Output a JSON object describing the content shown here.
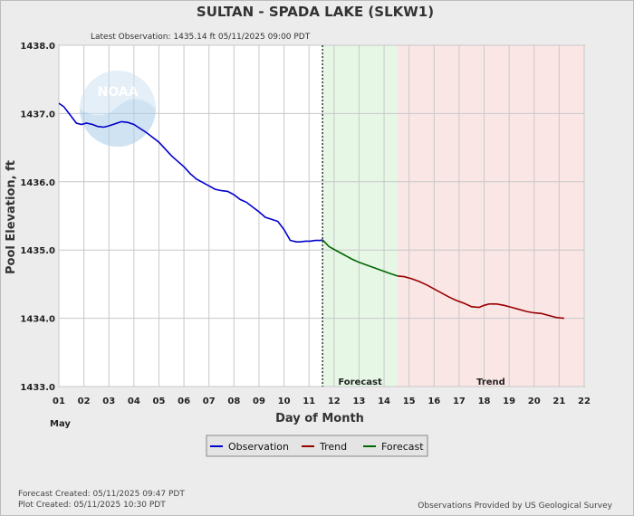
{
  "chart_data": {
    "type": "line",
    "title": "SULTAN - SPADA LAKE  (SLKW1)",
    "subtitle": "Latest Observation: 1435.14 ft 05/11/2025 09:00 PDT",
    "xlabel": "Day of Month",
    "ylabel": "Pool Elevation, ft",
    "month_label": "May",
    "xlim": [
      1,
      22
    ],
    "ylim": [
      1433.0,
      1438.0
    ],
    "x_ticks": [
      "01",
      "02",
      "03",
      "04",
      "05",
      "06",
      "07",
      "08",
      "09",
      "10",
      "11",
      "12",
      "13",
      "14",
      "15",
      "16",
      "17",
      "18",
      "19",
      "20",
      "21",
      "22"
    ],
    "y_ticks": [
      "1433.0",
      "1434.0",
      "1435.0",
      "1436.0",
      "1437.0",
      "1438.0"
    ],
    "grid": true,
    "regions": [
      {
        "label": "Forecast",
        "x_start": 11.54,
        "x_end": 14.54,
        "color": "#e6f7e6"
      },
      {
        "label": "Trend",
        "x_start": 14.54,
        "x_end": 22.0,
        "color": "#fbe6e6"
      }
    ],
    "now_marker_x": 11.54,
    "series": [
      {
        "name": "Observation",
        "color": "#0000cc",
        "x": [
          1.0,
          1.2,
          1.45,
          1.7,
          1.9,
          2.1,
          2.35,
          2.55,
          2.8,
          3.0,
          3.25,
          3.5,
          3.75,
          4.0,
          4.25,
          4.5,
          4.75,
          5.0,
          5.25,
          5.5,
          5.75,
          6.0,
          6.25,
          6.5,
          6.75,
          7.0,
          7.25,
          7.5,
          7.75,
          8.0,
          8.25,
          8.5,
          8.75,
          9.0,
          9.25,
          9.5,
          9.75,
          10.0,
          10.25,
          10.5,
          10.65,
          10.85,
          11.05,
          11.25,
          11.45,
          11.54
        ],
        "y": [
          1437.15,
          1437.1,
          1436.98,
          1436.86,
          1436.84,
          1436.86,
          1436.84,
          1436.81,
          1436.8,
          1436.82,
          1436.85,
          1436.88,
          1436.87,
          1436.84,
          1436.78,
          1436.72,
          1436.65,
          1436.58,
          1436.48,
          1436.38,
          1436.3,
          1436.22,
          1436.12,
          1436.04,
          1435.99,
          1435.94,
          1435.89,
          1435.87,
          1435.86,
          1435.81,
          1435.74,
          1435.7,
          1435.63,
          1435.56,
          1435.48,
          1435.45,
          1435.42,
          1435.3,
          1435.14,
          1435.12,
          1435.12,
          1435.13,
          1435.13,
          1435.14,
          1435.14,
          1435.15
        ]
      },
      {
        "name": "Forecast",
        "color": "#006600",
        "x": [
          11.54,
          11.8,
          12.1,
          12.4,
          12.7,
          13.0,
          13.3,
          13.6,
          13.9,
          14.2,
          14.54
        ],
        "y": [
          1435.15,
          1435.05,
          1434.99,
          1434.93,
          1434.87,
          1434.82,
          1434.78,
          1434.74,
          1434.7,
          1434.66,
          1434.62
        ]
      },
      {
        "name": "Trend",
        "color": "#990000",
        "x": [
          14.54,
          14.8,
          15.1,
          15.4,
          15.7,
          16.0,
          16.3,
          16.6,
          16.9,
          17.2,
          17.5,
          17.8,
          18.0,
          18.2,
          18.5,
          18.8,
          19.1,
          19.4,
          19.7,
          20.0,
          20.3,
          20.6,
          20.9,
          21.2
        ],
        "y": [
          1434.62,
          1434.61,
          1434.58,
          1434.54,
          1434.49,
          1434.43,
          1434.37,
          1434.31,
          1434.26,
          1434.22,
          1434.17,
          1434.16,
          1434.19,
          1434.21,
          1434.21,
          1434.19,
          1434.16,
          1434.13,
          1434.1,
          1434.08,
          1434.07,
          1434.04,
          1434.01,
          1434.0
        ]
      }
    ],
    "legend": {
      "placement": "bottom-center",
      "entries": [
        "Observation",
        "Trend",
        "Forecast"
      ]
    }
  },
  "footer": {
    "forecast_created": "Forecast Created: 05/11/2025 09:47 PDT",
    "plot_created": "Plot Created: 05/11/2025 10:30 PDT",
    "source": "Observations Provided by US Geological Survey"
  },
  "watermark": {
    "text": "NOAA",
    "icon": "noaa-logo"
  }
}
